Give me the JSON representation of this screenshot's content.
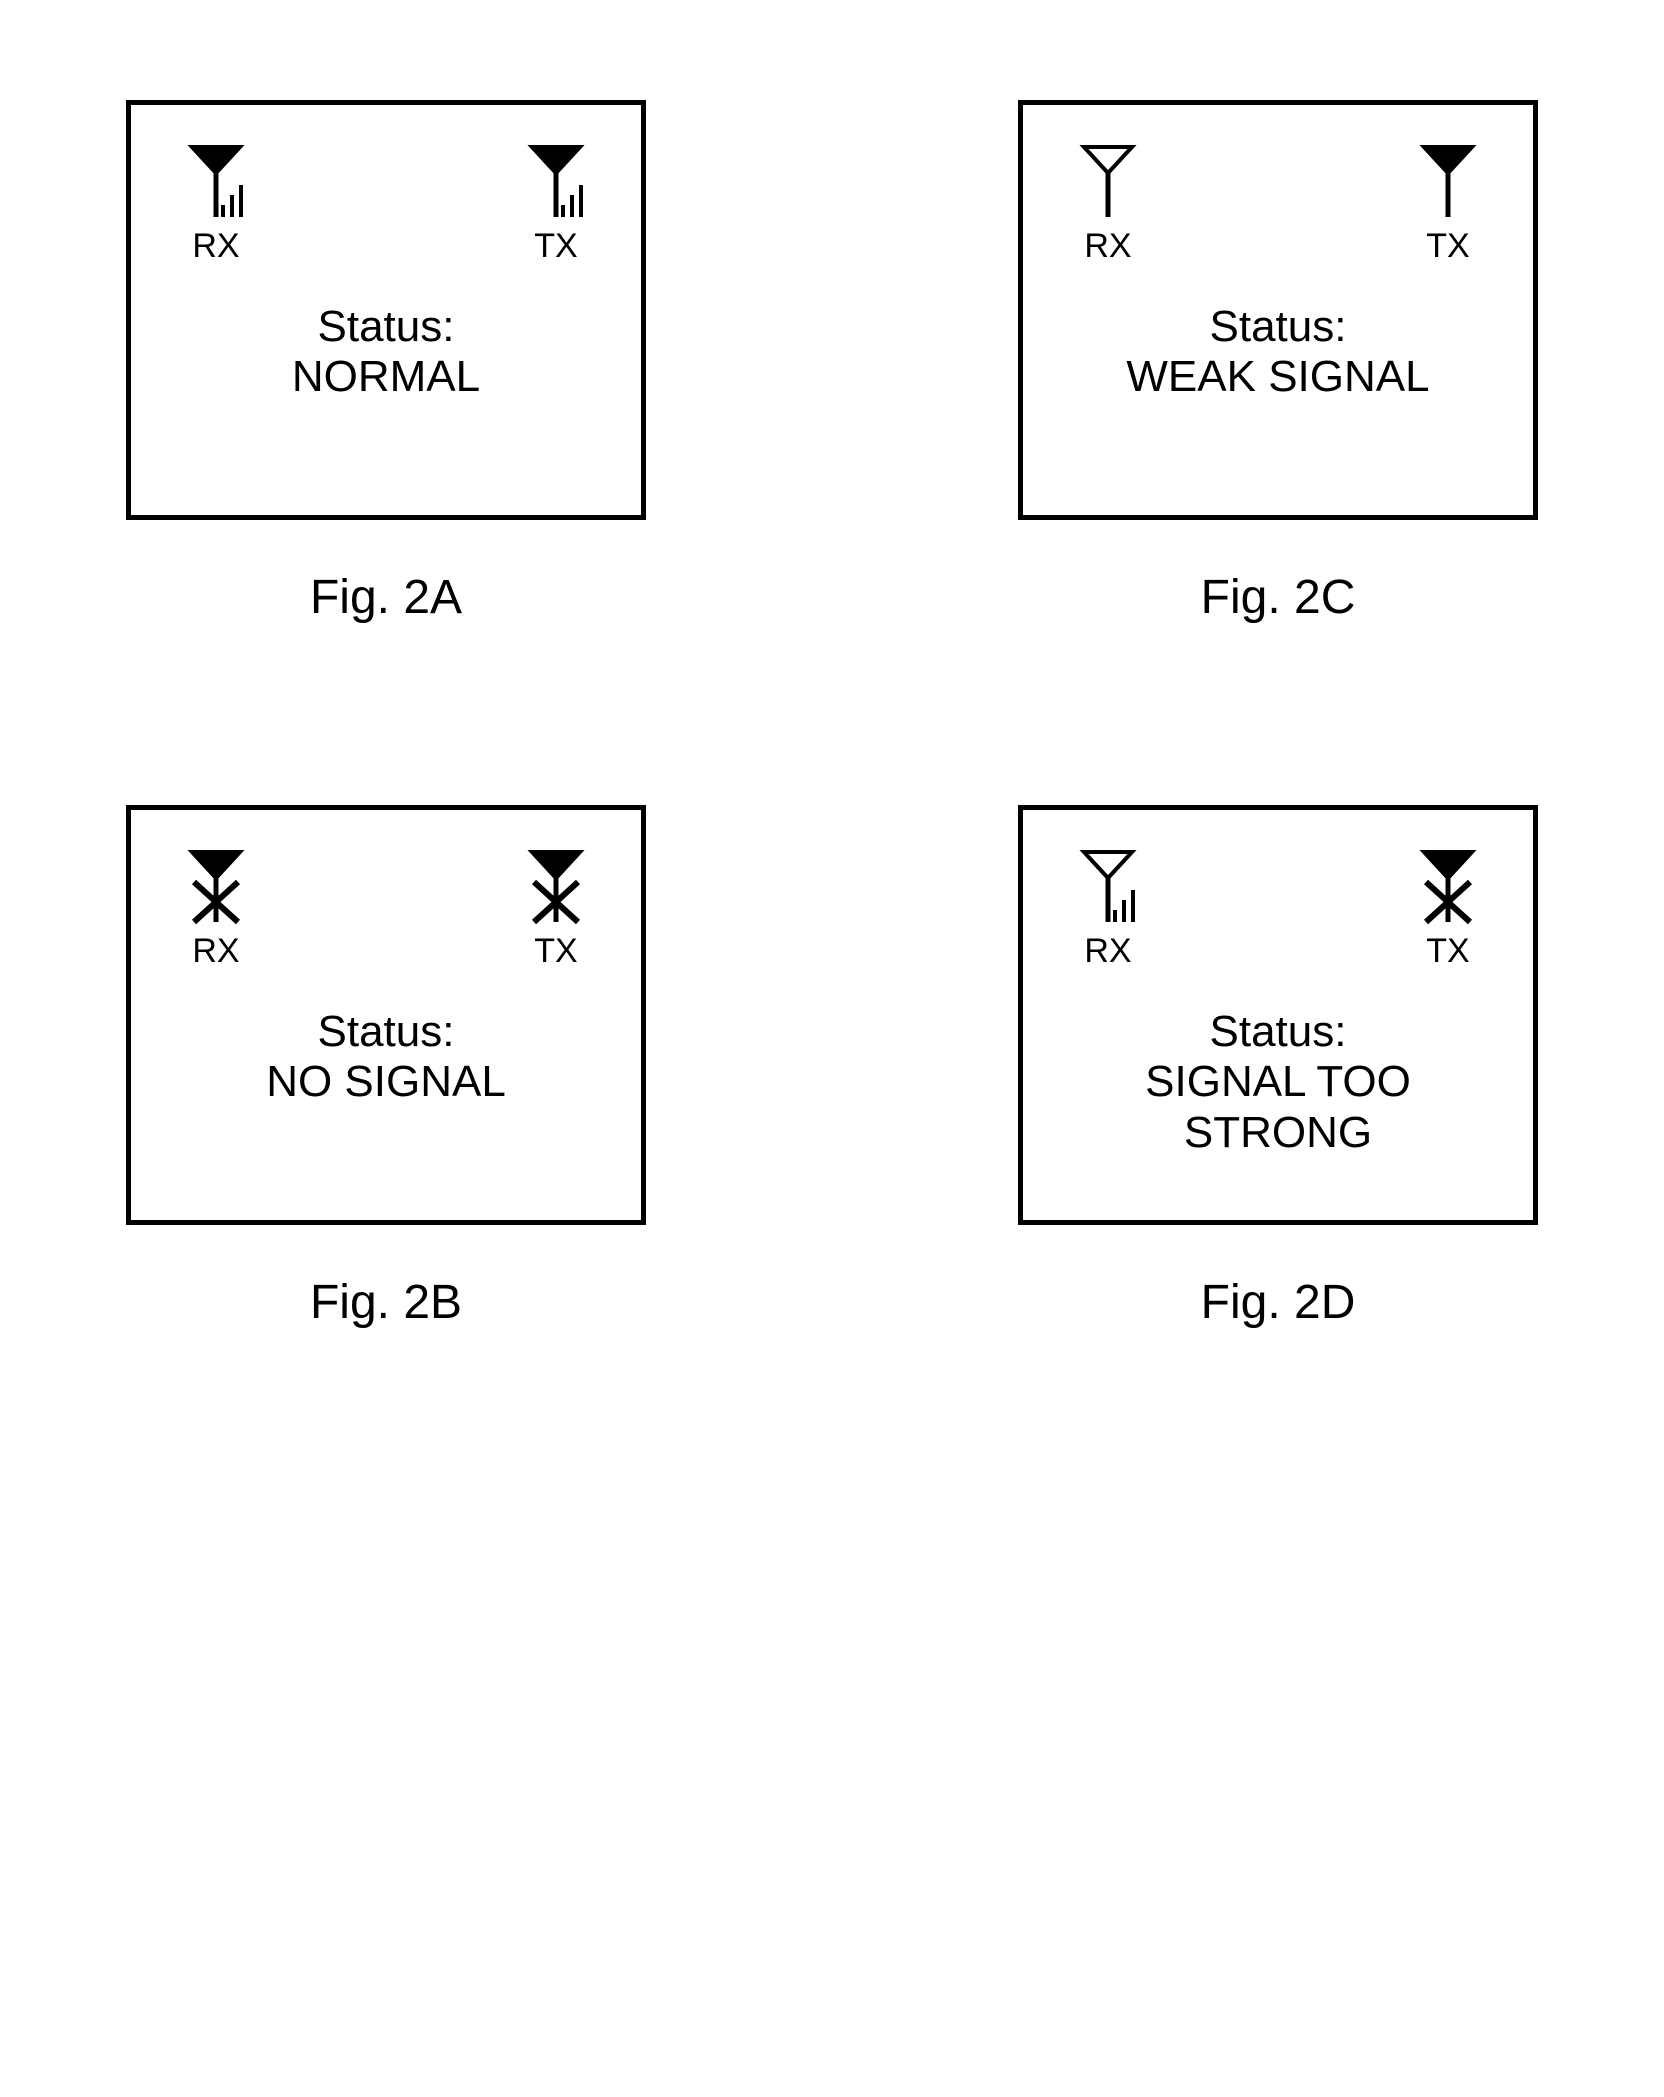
{
  "figures": {
    "A": {
      "caption": "Fig. 2A",
      "rx_label": "RX",
      "tx_label": "TX",
      "status_label": "Status:",
      "status_value": "NORMAL",
      "rx_icon": {
        "filled": true,
        "bars": 3,
        "crossed": false
      },
      "tx_icon": {
        "filled": true,
        "bars": 3,
        "crossed": false
      }
    },
    "B": {
      "caption": "Fig. 2B",
      "rx_label": "RX",
      "tx_label": "TX",
      "status_label": "Status:",
      "status_value": "NO SIGNAL",
      "rx_icon": {
        "filled": true,
        "bars": 0,
        "crossed": true
      },
      "tx_icon": {
        "filled": true,
        "bars": 0,
        "crossed": true
      }
    },
    "C": {
      "caption": "Fig. 2C",
      "rx_label": "RX",
      "tx_label": "TX",
      "status_label": "Status:",
      "status_value": "WEAK SIGNAL",
      "rx_icon": {
        "filled": false,
        "bars": 0,
        "crossed": false
      },
      "tx_icon": {
        "filled": true,
        "bars": 0,
        "crossed": false
      }
    },
    "D": {
      "caption": "Fig. 2D",
      "rx_label": "RX",
      "tx_label": "TX",
      "status_label": "Status:",
      "status_value": "SIGNAL TOO\nSTRONG",
      "rx_icon": {
        "filled": false,
        "bars": 3,
        "crossed": false
      },
      "tx_icon": {
        "filled": true,
        "bars": 0,
        "crossed": true
      }
    }
  },
  "colors": {
    "stroke": "#000000",
    "background": "#ffffff"
  },
  "icon_dims": {
    "w": 70,
    "h": 78
  }
}
